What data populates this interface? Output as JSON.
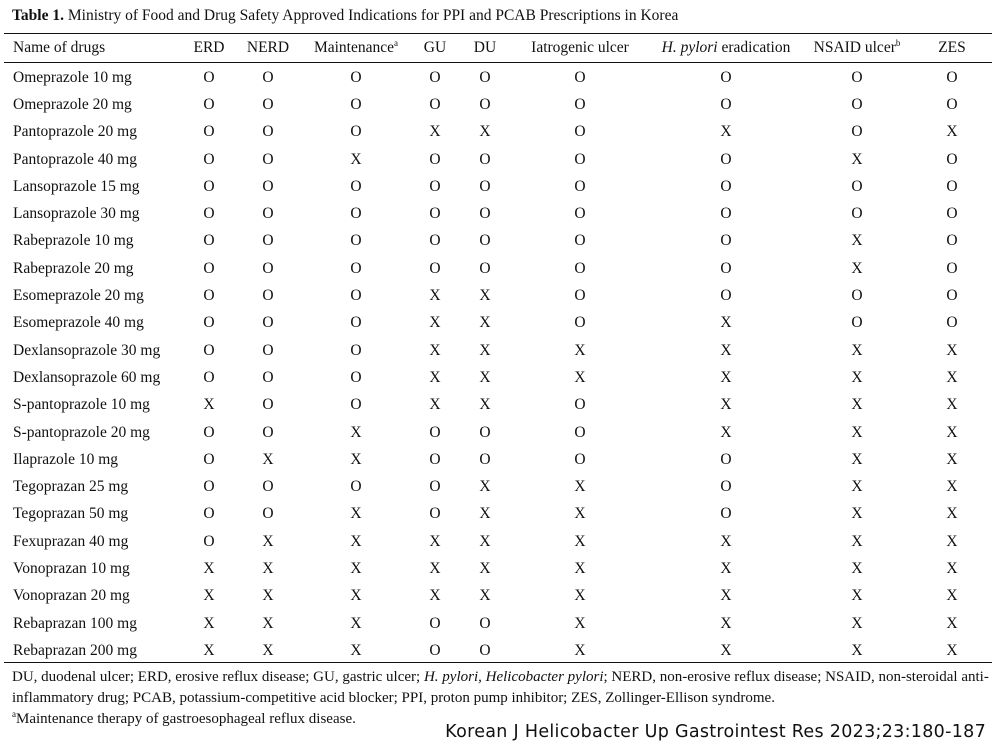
{
  "caption": {
    "label": "Table 1.",
    "text": "Ministry of Food and Drug Safety Approved Indications for PPI and PCAB Prescriptions in Korea"
  },
  "header": {
    "name": "Name of drugs",
    "erd": "ERD",
    "nerd": "NERD",
    "maintenance": "Maintenance",
    "maintenance_sup": "a",
    "gu": "GU",
    "du": "DU",
    "iatrogenic": "Iatrogenic ulcer",
    "hp_italic": "H. pylori",
    "hp_rest": " eradication",
    "nsaid": "NSAID ulcer",
    "nsaid_sup": "b",
    "zes": "ZES"
  },
  "rows": [
    {
      "name": "Omeprazole 10 mg",
      "v": [
        "O",
        "O",
        "O",
        "O",
        "O",
        "O",
        "O",
        "O",
        "O"
      ]
    },
    {
      "name": "Omeprazole 20 mg",
      "v": [
        "O",
        "O",
        "O",
        "O",
        "O",
        "O",
        "O",
        "O",
        "O"
      ]
    },
    {
      "name": "Pantoprazole 20 mg",
      "v": [
        "O",
        "O",
        "O",
        "X",
        "X",
        "O",
        "X",
        "O",
        "X"
      ]
    },
    {
      "name": "Pantoprazole 40 mg",
      "v": [
        "O",
        "O",
        "X",
        "O",
        "O",
        "O",
        "O",
        "X",
        "O"
      ]
    },
    {
      "name": "Lansoprazole 15 mg",
      "v": [
        "O",
        "O",
        "O",
        "O",
        "O",
        "O",
        "O",
        "O",
        "O"
      ]
    },
    {
      "name": "Lansoprazole 30 mg",
      "v": [
        "O",
        "O",
        "O",
        "O",
        "O",
        "O",
        "O",
        "O",
        "O"
      ]
    },
    {
      "name": "Rabeprazole 10 mg",
      "v": [
        "O",
        "O",
        "O",
        "O",
        "O",
        "O",
        "O",
        "X",
        "O"
      ]
    },
    {
      "name": "Rabeprazole 20 mg",
      "v": [
        "O",
        "O",
        "O",
        "O",
        "O",
        "O",
        "O",
        "X",
        "O"
      ]
    },
    {
      "name": "Esomeprazole 20 mg",
      "v": [
        "O",
        "O",
        "O",
        "X",
        "X",
        "O",
        "O",
        "O",
        "O"
      ]
    },
    {
      "name": "Esomeprazole 40 mg",
      "v": [
        "O",
        "O",
        "O",
        "X",
        "X",
        "O",
        "X",
        "O",
        "O"
      ]
    },
    {
      "name": "Dexlansoprazole 30 mg",
      "v": [
        "O",
        "O",
        "O",
        "X",
        "X",
        "X",
        "X",
        "X",
        "X"
      ]
    },
    {
      "name": "Dexlansoprazole 60 mg",
      "v": [
        "O",
        "O",
        "O",
        "X",
        "X",
        "X",
        "X",
        "X",
        "X"
      ]
    },
    {
      "name": "S-pantoprazole 10 mg",
      "v": [
        "X",
        "O",
        "O",
        "X",
        "X",
        "O",
        "X",
        "X",
        "X"
      ]
    },
    {
      "name": "S-pantoprazole 20 mg",
      "v": [
        "O",
        "O",
        "X",
        "O",
        "O",
        "O",
        "X",
        "X",
        "X"
      ]
    },
    {
      "name": "Ilaprazole 10 mg",
      "v": [
        "O",
        "X",
        "X",
        "O",
        "O",
        "O",
        "O",
        "X",
        "X"
      ]
    },
    {
      "name": "Tegoprazan 25 mg",
      "v": [
        "O",
        "O",
        "O",
        "O",
        "X",
        "X",
        "O",
        "X",
        "X"
      ]
    },
    {
      "name": "Tegoprazan 50 mg",
      "v": [
        "O",
        "O",
        "X",
        "O",
        "X",
        "X",
        "O",
        "X",
        "X"
      ]
    },
    {
      "name": "Fexuprazan 40 mg",
      "v": [
        "O",
        "X",
        "X",
        "X",
        "X",
        "X",
        "X",
        "X",
        "X"
      ]
    },
    {
      "name": "Vonoprazan 10 mg",
      "v": [
        "X",
        "X",
        "X",
        "X",
        "X",
        "X",
        "X",
        "X",
        "X"
      ]
    },
    {
      "name": "Vonoprazan 20 mg",
      "v": [
        "X",
        "X",
        "X",
        "X",
        "X",
        "X",
        "X",
        "X",
        "X"
      ]
    },
    {
      "name": "Rebaprazan 100 mg",
      "v": [
        "X",
        "X",
        "X",
        "O",
        "O",
        "X",
        "X",
        "X",
        "X"
      ]
    },
    {
      "name": "Rebaprazan 200 mg",
      "v": [
        "X",
        "X",
        "X",
        "O",
        "O",
        "X",
        "X",
        "X",
        "X"
      ]
    }
  ],
  "footnote": {
    "p1_before": "DU, duodenal ulcer; ERD, erosive reflux disease; GU, gastric ulcer; ",
    "p1_italic": "H. pylori, Helicobacter pylori",
    "p1_after": "; NERD, non-erosive reflux disease; NSAID, non-steroidal anti-inflammatory drug; PCAB, potassium-competitive acid blocker; PPI, proton pump inhibitor; ZES, Zollinger-Ellison syndrome.",
    "p2_sup": "a",
    "p2_text": "Maintenance therapy of gastroesophageal reflux disease."
  },
  "source": "Korean J Helicobacter  Up Gastrointest Res 2023;23:180-187"
}
